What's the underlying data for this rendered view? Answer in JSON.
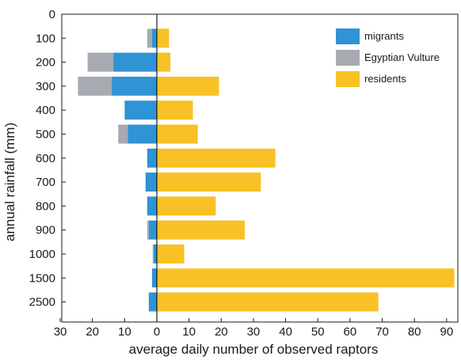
{
  "chart_data": {
    "type": "bar",
    "orientation": "horizontal-diverging",
    "xlabel": "average daily number of observed raptors",
    "ylabel": "annual rainfall (mm)",
    "xlim": [
      -30,
      92
    ],
    "x_ticks": [
      {
        "value": -30,
        "label": "30"
      },
      {
        "value": -20,
        "label": "20"
      },
      {
        "value": -10,
        "label": "10"
      },
      {
        "value": 0,
        "label": "0"
      },
      {
        "value": 10,
        "label": "10"
      },
      {
        "value": 20,
        "label": "20"
      },
      {
        "value": 30,
        "label": "30"
      },
      {
        "value": 40,
        "label": "40"
      },
      {
        "value": 50,
        "label": "50"
      },
      {
        "value": 60,
        "label": "60"
      },
      {
        "value": 70,
        "label": "70"
      },
      {
        "value": 80,
        "label": "80"
      },
      {
        "value": 90,
        "label": "90"
      }
    ],
    "y_ticks": [
      "0",
      "100",
      "200",
      "300",
      "400",
      "500",
      "600",
      "700",
      "800",
      "900",
      "1000",
      "1500",
      "2500"
    ],
    "categories": [
      "100",
      "200",
      "300",
      "400",
      "500",
      "600",
      "700",
      "800",
      "900",
      "1000",
      "1500",
      "2500"
    ],
    "series": [
      {
        "name": "migrants",
        "side": "left",
        "color": "#2f93d5",
        "values": [
          1.5,
          13.5,
          14,
          10,
          9,
          3,
          3.5,
          3,
          2.5,
          1,
          1.5,
          2.5
        ]
      },
      {
        "name": "Egyptian Vulture",
        "side": "left",
        "color": "#a7abb1",
        "values": [
          1.5,
          8,
          10.5,
          0,
          3,
          0,
          0,
          0,
          0.5,
          0.3,
          0,
          0
        ]
      },
      {
        "name": "residents",
        "side": "right",
        "color": "#f8c125",
        "values": [
          3.8,
          4.2,
          19.3,
          11.2,
          12.7,
          36.8,
          32.3,
          18.3,
          27.3,
          8.5,
          92.4,
          68.8
        ]
      }
    ],
    "legend": {
      "placement": "top-right",
      "entries": [
        "migrants",
        "Egyptian Vulture",
        "residents"
      ]
    },
    "grid": false
  }
}
